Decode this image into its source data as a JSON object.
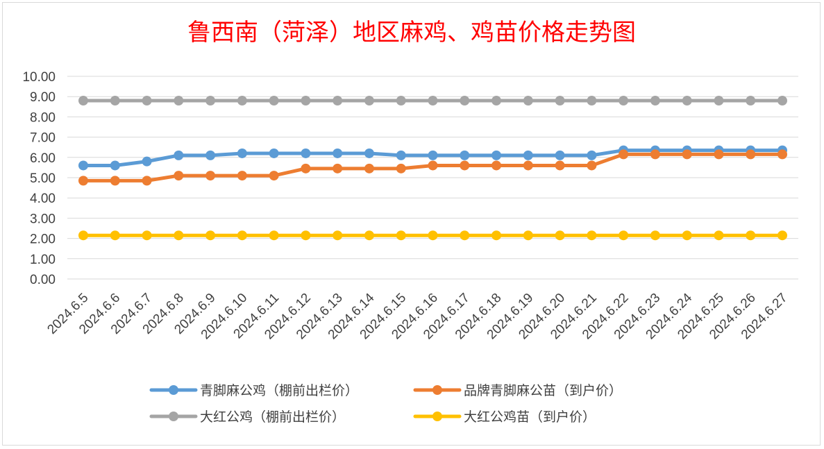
{
  "chart_data": {
    "type": "line",
    "title": "鲁西南（菏泽）地区麻鸡、鸡苗价格走势图",
    "categories": [
      "2024.6.5",
      "2024.6.6",
      "2024.6.7",
      "2024.6.8",
      "2024.6.9",
      "2024.6.10",
      "2024.6.11",
      "2024.6.12",
      "2024.6.13",
      "2024.6.14",
      "2024.6.15",
      "2024.6.16",
      "2024.6.17",
      "2024.6.18",
      "2024.6.19",
      "2024.6.20",
      "2024.6.21",
      "2024.6.22",
      "2024.6.23",
      "2024.6.24",
      "2024.6.25",
      "2024.6.26",
      "2024.6.27"
    ],
    "y_ticks": [
      "0.00",
      "1.00",
      "2.00",
      "3.00",
      "4.00",
      "5.00",
      "6.00",
      "7.00",
      "8.00",
      "9.00",
      "10.00"
    ],
    "ylim": [
      0,
      10
    ],
    "grid": true,
    "legend_position": "bottom",
    "series": [
      {
        "name": "青脚麻公鸡（棚前出栏价）",
        "color": "#5b9bd5",
        "values": [
          5.6,
          5.6,
          5.8,
          6.1,
          6.1,
          6.2,
          6.2,
          6.2,
          6.2,
          6.2,
          6.1,
          6.1,
          6.1,
          6.1,
          6.1,
          6.1,
          6.1,
          6.35,
          6.35,
          6.35,
          6.35,
          6.35,
          6.35
        ]
      },
      {
        "name": "品牌青脚麻公苗（到户价）",
        "color": "#ed7d31",
        "values": [
          4.85,
          4.85,
          4.85,
          5.1,
          5.1,
          5.1,
          5.1,
          5.45,
          5.45,
          5.45,
          5.45,
          5.6,
          5.6,
          5.6,
          5.6,
          5.6,
          5.6,
          6.15,
          6.15,
          6.15,
          6.15,
          6.15,
          6.15
        ]
      },
      {
        "name": "大红公鸡（棚前出栏价）",
        "color": "#a5a5a5",
        "values": [
          8.8,
          8.8,
          8.8,
          8.8,
          8.8,
          8.8,
          8.8,
          8.8,
          8.8,
          8.8,
          8.8,
          8.8,
          8.8,
          8.8,
          8.8,
          8.8,
          8.8,
          8.8,
          8.8,
          8.8,
          8.8,
          8.8,
          8.8
        ]
      },
      {
        "name": "大红公鸡苗（到户价）",
        "color": "#ffc000",
        "values": [
          2.15,
          2.15,
          2.15,
          2.15,
          2.15,
          2.15,
          2.15,
          2.15,
          2.15,
          2.15,
          2.15,
          2.15,
          2.15,
          2.15,
          2.15,
          2.15,
          2.15,
          2.15,
          2.15,
          2.15,
          2.15,
          2.15,
          2.15
        ]
      }
    ]
  }
}
